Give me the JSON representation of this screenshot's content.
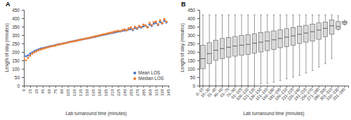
{
  "chart_data": [
    {
      "type": "scatter",
      "title": "A",
      "x_label": "Lab turnaround time (minutes)",
      "y_label": "Length of stay (minutes)",
      "x": [
        0,
        5,
        10,
        15,
        20,
        25,
        30,
        35,
        40,
        45,
        50,
        55,
        60,
        65,
        70,
        75,
        80,
        85,
        90,
        95,
        100,
        105,
        110,
        115,
        120,
        125,
        130,
        135,
        140,
        145,
        150,
        155,
        160,
        165,
        170,
        175,
        180,
        185,
        190,
        195,
        200,
        205,
        210,
        215,
        220,
        225,
        230,
        235,
        240,
        245,
        250,
        255,
        260,
        265,
        270,
        275,
        280,
        285,
        290,
        295,
        300,
        305,
        310,
        315,
        320,
        325,
        330,
        335,
        340
      ],
      "series": [
        {
          "name": "Mean LOS",
          "color": "#4472c4",
          "marker": "circle",
          "values": [
            185,
            175,
            180,
            190,
            198,
            205,
            210,
            215,
            220,
            222,
            226,
            229,
            232,
            235,
            237,
            240,
            243,
            246,
            248,
            251,
            254,
            257,
            260,
            262,
            265,
            267,
            270,
            272,
            275,
            277,
            280,
            282,
            285,
            288,
            290,
            293,
            296,
            299,
            302,
            304,
            307,
            310,
            312,
            315,
            318,
            321,
            322,
            326,
            328,
            330,
            334,
            336,
            330,
            342,
            338,
            348,
            345,
            352,
            356,
            348,
            362,
            355,
            368,
            372,
            360,
            378,
            370,
            385,
            375
          ]
        },
        {
          "name": "Median LOS",
          "color": "#ed7d31",
          "marker": "circle",
          "values": [
            160,
            150,
            165,
            178,
            190,
            198,
            204,
            210,
            215,
            218,
            222,
            226,
            229,
            233,
            235,
            238,
            242,
            244,
            247,
            250,
            253,
            256,
            259,
            262,
            264,
            266,
            270,
            272,
            276,
            278,
            281,
            283,
            287,
            289,
            293,
            295,
            299,
            302,
            305,
            307,
            311,
            313,
            316,
            320,
            322,
            326,
            324,
            330,
            334,
            328,
            340,
            345,
            335,
            350,
            342,
            355,
            348,
            362,
            358,
            345,
            372,
            360,
            378,
            380,
            365,
            388,
            372,
            395,
            380
          ]
        }
      ],
      "xlim": [
        0,
        345
      ],
      "xticks": [
        0,
        15,
        30,
        45,
        60,
        75,
        90,
        105,
        120,
        135,
        150,
        165,
        180,
        195,
        210,
        225,
        240,
        255,
        270,
        285,
        300,
        315,
        330,
        345
      ],
      "ylim": [
        0,
        450
      ],
      "yticks": [
        0,
        50,
        100,
        150,
        200,
        250,
        300,
        350,
        400,
        450
      ],
      "legend": "lower right"
    },
    {
      "type": "box",
      "title": "B",
      "x_label": "Lab turnaround time (minutes)",
      "y_label": "Length of stay (minutes)",
      "categories": [
        "0–15",
        "16–30",
        "31–45",
        "46–60",
        "61–75",
        "76–90",
        "91–105",
        "106–120",
        "121–135",
        "136–150",
        "151–165",
        "166–180",
        "181–195",
        "196–210",
        "211–225",
        "226–240",
        "241–255",
        "256–270",
        "271–285",
        "286–300",
        "301–315",
        "316–330",
        "331–345"
      ],
      "whisker_low": [
        0,
        0,
        0,
        0,
        0,
        0,
        0,
        0,
        5,
        10,
        15,
        20,
        30,
        40,
        50,
        60,
        75,
        90,
        110,
        130,
        160,
        330,
        360
      ],
      "q1": [
        100,
        130,
        150,
        160,
        168,
        175,
        180,
        185,
        192,
        200,
        208,
        215,
        225,
        232,
        240,
        250,
        258,
        265,
        275,
        290,
        305,
        335,
        365
      ],
      "median": [
        160,
        190,
        210,
        220,
        228,
        235,
        240,
        245,
        252,
        258,
        265,
        272,
        280,
        288,
        295,
        305,
        312,
        320,
        330,
        340,
        355,
        350,
        375
      ],
      "q3": [
        240,
        255,
        270,
        280,
        285,
        292,
        298,
        303,
        308,
        315,
        320,
        325,
        332,
        338,
        345,
        352,
        358,
        365,
        372,
        378,
        390,
        380,
        382
      ],
      "whisker_high": [
        420,
        420,
        420,
        420,
        420,
        420,
        420,
        420,
        420,
        420,
        420,
        420,
        420,
        420,
        420,
        420,
        420,
        420,
        420,
        420,
        420,
        415,
        388
      ],
      "color": "#d9d9d9",
      "ylim": [
        0,
        450
      ],
      "yticks": [
        0,
        50,
        100,
        150,
        200,
        250,
        300,
        350,
        400,
        450
      ]
    }
  ]
}
